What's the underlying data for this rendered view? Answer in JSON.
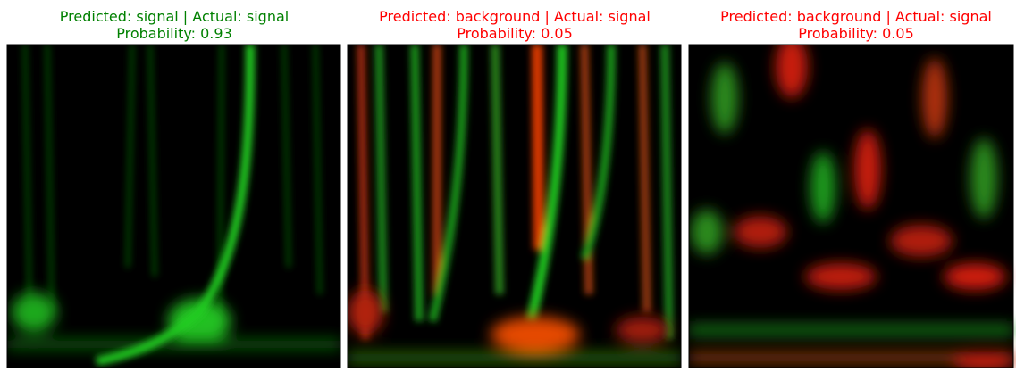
{
  "panels": [
    {
      "title_line1": "Predicted: signal | Actual: signal",
      "title_line2": "Probability: 0.93",
      "title_color": "#008000"
    },
    {
      "title_line1": "Predicted: background | Actual: signal",
      "title_line2": "Probability: 0.05",
      "title_color": "#ff0000"
    },
    {
      "title_line1": "Predicted: background | Actual: signal",
      "title_line2": "Probability: 0.05",
      "title_color": "#ff0000"
    }
  ]
}
